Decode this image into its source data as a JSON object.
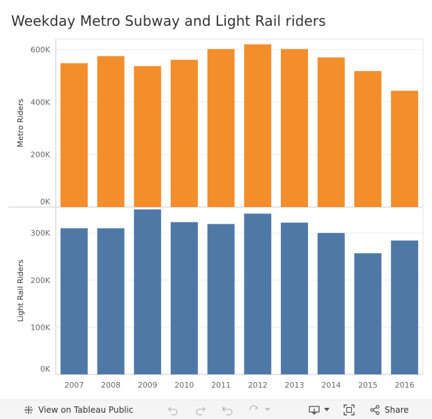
{
  "title": "Weekday Metro Subway and Light Rail riders",
  "chart_data": [
    {
      "type": "bar",
      "ylabel": "Metro Riders",
      "categories": [
        "2007",
        "2008",
        "2009",
        "2010",
        "2011",
        "2012",
        "2013",
        "2014",
        "2015",
        "2016"
      ],
      "values": [
        548000,
        575000,
        537000,
        561000,
        602000,
        620000,
        602000,
        570000,
        518000,
        443000
      ],
      "ylim": [
        0,
        640000
      ],
      "yticks": [
        0,
        200000,
        400000,
        600000
      ],
      "ytick_labels": [
        "0K",
        "200K",
        "400K",
        "600K"
      ],
      "color": "#f28e2b",
      "grid": true
    },
    {
      "type": "bar",
      "ylabel": "Light Rail Riders",
      "categories": [
        "2007",
        "2008",
        "2009",
        "2010",
        "2011",
        "2012",
        "2013",
        "2014",
        "2015",
        "2016"
      ],
      "values": [
        310000,
        310000,
        350000,
        323000,
        319000,
        341000,
        322000,
        300000,
        257000,
        284000
      ],
      "ylim": [
        0,
        355000
      ],
      "yticks": [
        0,
        100000,
        200000,
        300000
      ],
      "ytick_labels": [
        "0K",
        "100K",
        "200K",
        "300K"
      ],
      "color": "#4e79a7",
      "grid": true
    }
  ],
  "toolbar": {
    "view_label": "View on Tableau Public",
    "share_label": "Share"
  }
}
